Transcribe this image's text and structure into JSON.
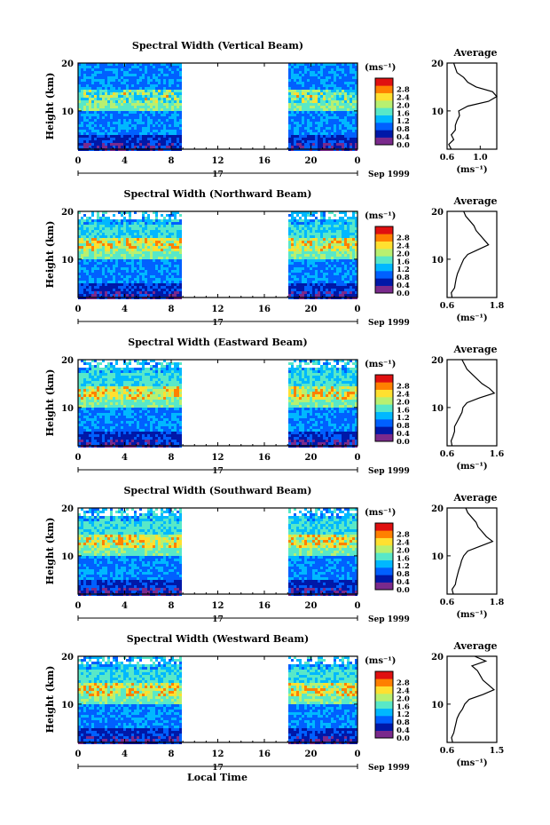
{
  "figure": {
    "x_axis_label": "Local Time",
    "date_label": "17",
    "month_year_label": "Sep 1999"
  },
  "colorbar": {
    "unit_label": "(ms⁻¹)",
    "tick_labels": [
      "0.0",
      "0.4",
      "0.8",
      "1.2",
      "1.6",
      "2.0",
      "2.4",
      "2.8"
    ],
    "colors": [
      "#7a2a8c",
      "#0018a8",
      "#0060ff",
      "#00b8ff",
      "#58e8c8",
      "#b8f070",
      "#ffe030",
      "#ff8000",
      "#e01010"
    ]
  },
  "chart_data": [
    {
      "type": "heatmap",
      "title": "Spectral Width (Vertical Beam)",
      "ylabel": "Height (km)",
      "xlim": [
        0,
        24
      ],
      "ylim": [
        2,
        20
      ],
      "x_ticks": [
        "0",
        "4",
        "8",
        "12",
        "16",
        "20",
        "0"
      ],
      "y_ticks": [
        "10",
        "20"
      ],
      "data_gap_hours": [
        9,
        18
      ],
      "profile": {
        "title": "Average",
        "xlabel": "(ms⁻¹)",
        "xlim": [
          0.6,
          1.2
        ],
        "x_ticks": [
          "0.6",
          "1.0"
        ],
        "y_ticks": [
          "10",
          "20"
        ],
        "height_km": [
          2,
          3,
          4,
          5,
          6,
          7,
          8,
          9,
          10,
          11,
          12,
          13,
          14,
          15,
          16,
          17,
          18,
          19,
          20
        ],
        "value": [
          0.65,
          0.62,
          0.68,
          0.65,
          0.7,
          0.7,
          0.72,
          0.75,
          0.74,
          0.85,
          1.1,
          1.2,
          1.15,
          0.95,
          0.85,
          0.8,
          0.72,
          0.7,
          0.68
        ]
      }
    },
    {
      "type": "heatmap",
      "title": "Spectral Width (Northward Beam)",
      "ylabel": "Height (km)",
      "xlim": [
        0,
        24
      ],
      "ylim": [
        2,
        20
      ],
      "x_ticks": [
        "0",
        "4",
        "8",
        "12",
        "16",
        "20",
        "0"
      ],
      "y_ticks": [
        "10",
        "20"
      ],
      "data_gap_hours": [
        9,
        18
      ],
      "profile": {
        "title": "Average",
        "xlabel": "(ms⁻¹)",
        "xlim": [
          0.6,
          1.8
        ],
        "x_ticks": [
          "0.6",
          "1.8"
        ],
        "y_ticks": [
          "10",
          "20"
        ],
        "height_km": [
          2,
          3,
          4,
          5,
          6,
          7,
          8,
          9,
          10,
          11,
          12,
          13,
          14,
          15,
          16,
          17,
          18,
          19,
          20
        ],
        "value": [
          0.72,
          0.7,
          0.78,
          0.8,
          0.82,
          0.85,
          0.9,
          0.95,
          1.0,
          1.1,
          1.35,
          1.6,
          1.5,
          1.4,
          1.3,
          1.25,
          1.15,
          1.05,
          1.0
        ]
      }
    },
    {
      "type": "heatmap",
      "title": "Spectral Width (Eastward Beam)",
      "ylabel": "Height (km)",
      "xlim": [
        0,
        24
      ],
      "ylim": [
        2,
        20
      ],
      "x_ticks": [
        "0",
        "4",
        "8",
        "12",
        "16",
        "20",
        "0"
      ],
      "y_ticks": [
        "10",
        "20"
      ],
      "data_gap_hours": [
        9,
        18
      ],
      "profile": {
        "title": "Average",
        "xlabel": "(ms⁻¹)",
        "xlim": [
          0.6,
          1.6
        ],
        "x_ticks": [
          "0.6",
          "1.6"
        ],
        "y_ticks": [
          "10",
          "20"
        ],
        "height_km": [
          2,
          3,
          4,
          5,
          6,
          7,
          8,
          9,
          10,
          11,
          12,
          13,
          14,
          15,
          16,
          17,
          18,
          19,
          20
        ],
        "value": [
          0.7,
          0.68,
          0.72,
          0.75,
          0.75,
          0.8,
          0.85,
          0.9,
          0.92,
          1.0,
          1.25,
          1.55,
          1.45,
          1.3,
          1.2,
          1.1,
          1.0,
          0.95,
          0.9
        ]
      }
    },
    {
      "type": "heatmap",
      "title": "Spectral Width (Southward Beam)",
      "ylabel": "Height (km)",
      "xlim": [
        0,
        24
      ],
      "ylim": [
        2,
        20
      ],
      "x_ticks": [
        "0",
        "4",
        "8",
        "12",
        "16",
        "20",
        "0"
      ],
      "y_ticks": [
        "10",
        "20"
      ],
      "data_gap_hours": [
        9,
        18
      ],
      "profile": {
        "title": "Average",
        "xlabel": "(ms⁻¹)",
        "xlim": [
          0.6,
          1.8
        ],
        "x_ticks": [
          "0.6",
          "1.8"
        ],
        "y_ticks": [
          "10",
          "20"
        ],
        "height_km": [
          2,
          3,
          4,
          5,
          6,
          7,
          8,
          9,
          10,
          11,
          12,
          13,
          14,
          15,
          16,
          17,
          18,
          19,
          20
        ],
        "value": [
          0.75,
          0.72,
          0.8,
          0.82,
          0.85,
          0.88,
          0.92,
          0.95,
          1.0,
          1.1,
          1.4,
          1.7,
          1.55,
          1.45,
          1.35,
          1.3,
          1.2,
          1.1,
          1.05
        ]
      }
    },
    {
      "type": "heatmap",
      "title": "Spectral Width (Westward Beam)",
      "ylabel": "Height (km)",
      "xlim": [
        0,
        24
      ],
      "ylim": [
        2,
        20
      ],
      "x_ticks": [
        "0",
        "4",
        "8",
        "12",
        "16",
        "20",
        "0"
      ],
      "y_ticks": [
        "10",
        "20"
      ],
      "data_gap_hours": [
        9,
        18
      ],
      "profile": {
        "title": "Average",
        "xlabel": "(ms⁻¹)",
        "xlim": [
          0.6,
          1.5
        ],
        "x_ticks": [
          "0.6",
          "1.5"
        ],
        "y_ticks": [
          "10",
          "20"
        ],
        "height_km": [
          2,
          3,
          4,
          5,
          6,
          7,
          8,
          9,
          10,
          11,
          12,
          13,
          14,
          15,
          16,
          17,
          18,
          19,
          20
        ],
        "value": [
          0.7,
          0.68,
          0.72,
          0.74,
          0.76,
          0.78,
          0.82,
          0.88,
          0.92,
          1.0,
          1.25,
          1.45,
          1.35,
          1.25,
          1.2,
          1.15,
          1.05,
          1.3,
          1.1
        ]
      }
    }
  ]
}
